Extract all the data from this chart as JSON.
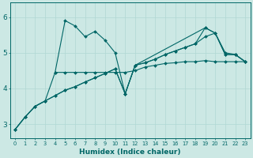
{
  "xlabel": "Humidex (Indice chaleur)",
  "bg_color": "#cce8e4",
  "line_color": "#006666",
  "grid_color": "#b0d8d4",
  "xlim": [
    -0.5,
    23.5
  ],
  "ylim": [
    2.6,
    6.4
  ],
  "xticks": [
    0,
    1,
    2,
    3,
    4,
    5,
    6,
    7,
    8,
    9,
    10,
    11,
    12,
    13,
    14,
    15,
    16,
    17,
    18,
    19,
    20,
    21,
    22,
    23
  ],
  "yticks": [
    3,
    4,
    5,
    6
  ],
  "lines": [
    {
      "x": [
        0,
        1,
        2,
        3,
        4,
        5,
        6,
        7,
        8,
        9,
        10,
        11,
        12,
        19,
        20,
        21,
        22,
        23
      ],
      "y": [
        2.85,
        3.2,
        3.5,
        3.65,
        4.45,
        5.9,
        5.75,
        5.45,
        5.6,
        5.35,
        5.0,
        3.85,
        4.65,
        5.7,
        5.55,
        4.95,
        4.95,
        4.75
      ]
    },
    {
      "x": [
        4,
        5,
        6,
        7,
        8,
        9,
        10,
        11,
        12,
        13,
        14,
        15,
        16,
        17,
        18,
        19,
        20,
        21,
        22,
        23
      ],
      "y": [
        4.45,
        4.45,
        4.45,
        4.45,
        4.45,
        4.45,
        4.45,
        4.45,
        4.5,
        4.6,
        4.65,
        4.7,
        4.72,
        4.75,
        4.75,
        4.78,
        4.75,
        4.75,
        4.75,
        4.75
      ]
    },
    {
      "x": [
        0,
        1,
        2,
        3,
        4,
        5,
        6,
        7,
        8,
        9,
        10,
        11,
        12,
        13,
        14,
        15,
        16,
        17,
        18,
        19,
        20,
        21,
        22,
        23
      ],
      "y": [
        2.85,
        3.2,
        3.5,
        3.65,
        3.8,
        3.95,
        4.05,
        4.18,
        4.3,
        4.42,
        4.55,
        3.85,
        4.65,
        4.72,
        4.82,
        4.95,
        5.05,
        5.15,
        5.25,
        5.45,
        5.55,
        5.0,
        4.95,
        4.75
      ]
    },
    {
      "x": [
        0,
        1,
        2,
        3,
        4,
        5,
        6,
        7,
        8,
        9,
        10,
        11,
        12,
        13,
        14,
        15,
        16,
        17,
        18,
        19,
        20,
        21,
        22,
        23
      ],
      "y": [
        2.85,
        3.2,
        3.5,
        3.65,
        3.8,
        3.95,
        4.05,
        4.18,
        4.3,
        4.42,
        4.55,
        3.85,
        4.65,
        4.72,
        4.82,
        4.95,
        5.05,
        5.15,
        5.25,
        5.7,
        5.55,
        4.95,
        4.95,
        4.75
      ]
    }
  ]
}
